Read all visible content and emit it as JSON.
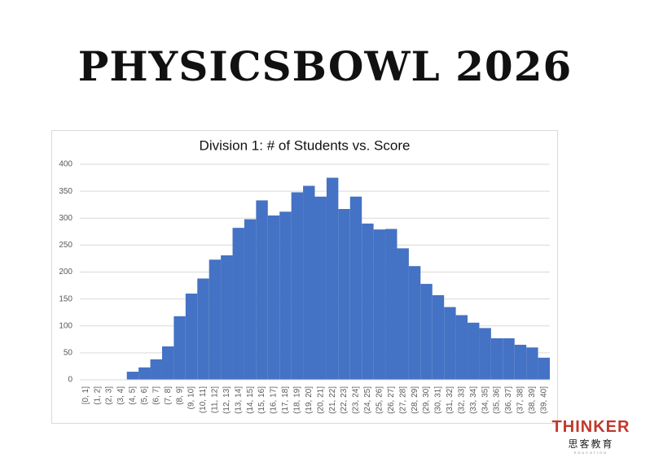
{
  "header": {
    "title": "PHYSICSBOWL 2026"
  },
  "logo": {
    "name": "THINKER",
    "chinese": "思客教育",
    "sub": "EDUCATION"
  },
  "chart_data": {
    "type": "bar",
    "title": "Division 1: # of Students vs. Score",
    "categories": [
      "[0, 1]",
      "(1, 2]",
      "(2, 3]",
      "(3, 4]",
      "(4, 5]",
      "(5, 6]",
      "(6, 7]",
      "(7, 8]",
      "(8, 9]",
      "(9, 10]",
      "(10, 11]",
      "(11, 12]",
      "(12, 13]",
      "(13, 14]",
      "(14, 15]",
      "(15, 16]",
      "(16, 17]",
      "(17, 18]",
      "(18, 19]",
      "(19, 20]",
      "(20, 21]",
      "(21, 22]",
      "(22, 23]",
      "(23, 24]",
      "(24, 25]",
      "(25, 26]",
      "(26, 27]",
      "(27, 28]",
      "(28, 29]",
      "(29, 30]",
      "(30, 31]",
      "(31, 32]",
      "(32, 33]",
      "(33, 34]",
      "(34, 35]",
      "(35, 36]",
      "(36, 37]",
      "(37, 38]",
      "(38, 39]",
      "(39, 40]"
    ],
    "values": [
      0,
      0,
      0,
      0,
      15,
      23,
      38,
      62,
      118,
      160,
      188,
      223,
      231,
      282,
      298,
      333,
      305,
      312,
      348,
      360,
      340,
      375,
      317,
      340,
      290,
      279,
      280,
      244,
      211,
      178,
      157,
      135,
      120,
      106,
      96,
      77,
      77,
      65,
      60,
      41
    ],
    "color": "#4472c4",
    "ylim": [
      0,
      400
    ],
    "yticks": [
      0,
      50,
      100,
      150,
      200,
      250,
      300,
      350,
      400
    ],
    "grid": true
  }
}
